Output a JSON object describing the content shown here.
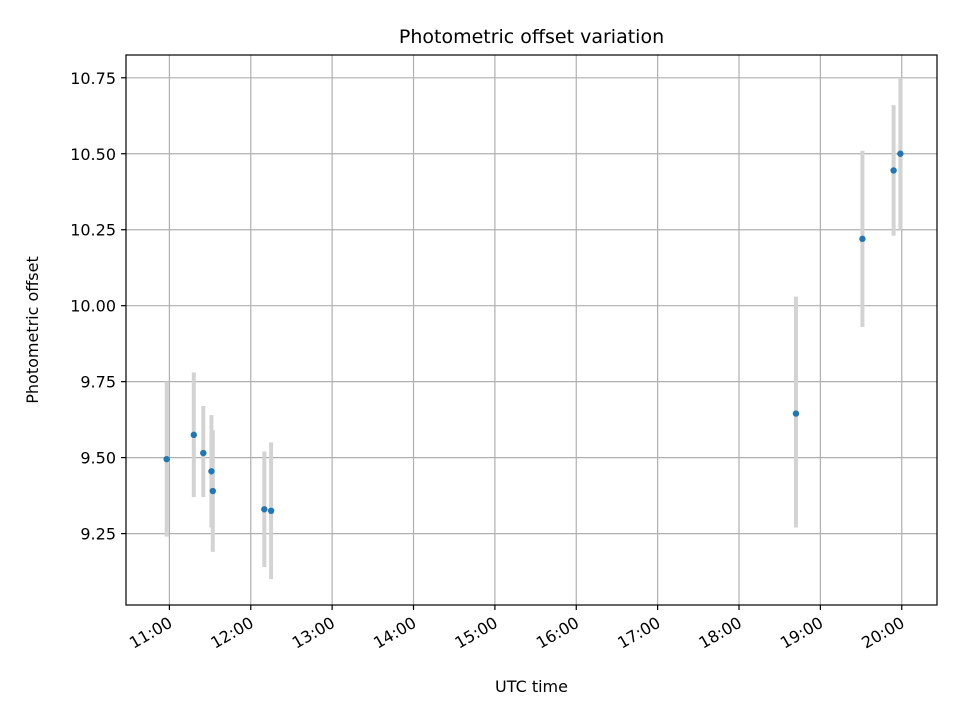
{
  "chart_data": {
    "type": "scatter",
    "title": "Photometric offset variation",
    "xlabel": "UTC time",
    "ylabel": "Photometric offset",
    "x_ticks": [
      "11:00",
      "12:00",
      "13:00",
      "14:00",
      "15:00",
      "16:00",
      "17:00",
      "18:00",
      "19:00",
      "20:00"
    ],
    "y_ticks": [
      "9.25",
      "9.50",
      "9.75",
      "10.00",
      "10.25",
      "10.50",
      "10.75"
    ],
    "xlim": [
      "10:28",
      "20:26"
    ],
    "ylim": [
      9.015,
      10.825
    ],
    "grid": true,
    "marker_color": "#1f77b4",
    "errorbar_color": "#d3d3d3",
    "points": [
      {
        "time": "10:58",
        "value": 9.495,
        "low": 9.24,
        "high": 9.75
      },
      {
        "time": "11:18",
        "value": 9.575,
        "low": 9.37,
        "high": 9.78
      },
      {
        "time": "11:25",
        "value": 9.515,
        "low": 9.37,
        "high": 9.67
      },
      {
        "time": "11:31",
        "value": 9.455,
        "low": 9.27,
        "high": 9.64
      },
      {
        "time": "11:32",
        "value": 9.39,
        "low": 9.19,
        "high": 9.59
      },
      {
        "time": "12:10",
        "value": 9.33,
        "low": 9.14,
        "high": 9.52
      },
      {
        "time": "12:15",
        "value": 9.325,
        "low": 9.1,
        "high": 9.55
      },
      {
        "time": "18:42",
        "value": 9.645,
        "low": 9.27,
        "high": 10.03
      },
      {
        "time": "19:31",
        "value": 10.22,
        "low": 9.93,
        "high": 10.51
      },
      {
        "time": "19:54",
        "value": 10.445,
        "low": 10.23,
        "high": 10.66
      },
      {
        "time": "19:59",
        "value": 10.5,
        "low": 10.25,
        "high": 10.75
      }
    ]
  }
}
